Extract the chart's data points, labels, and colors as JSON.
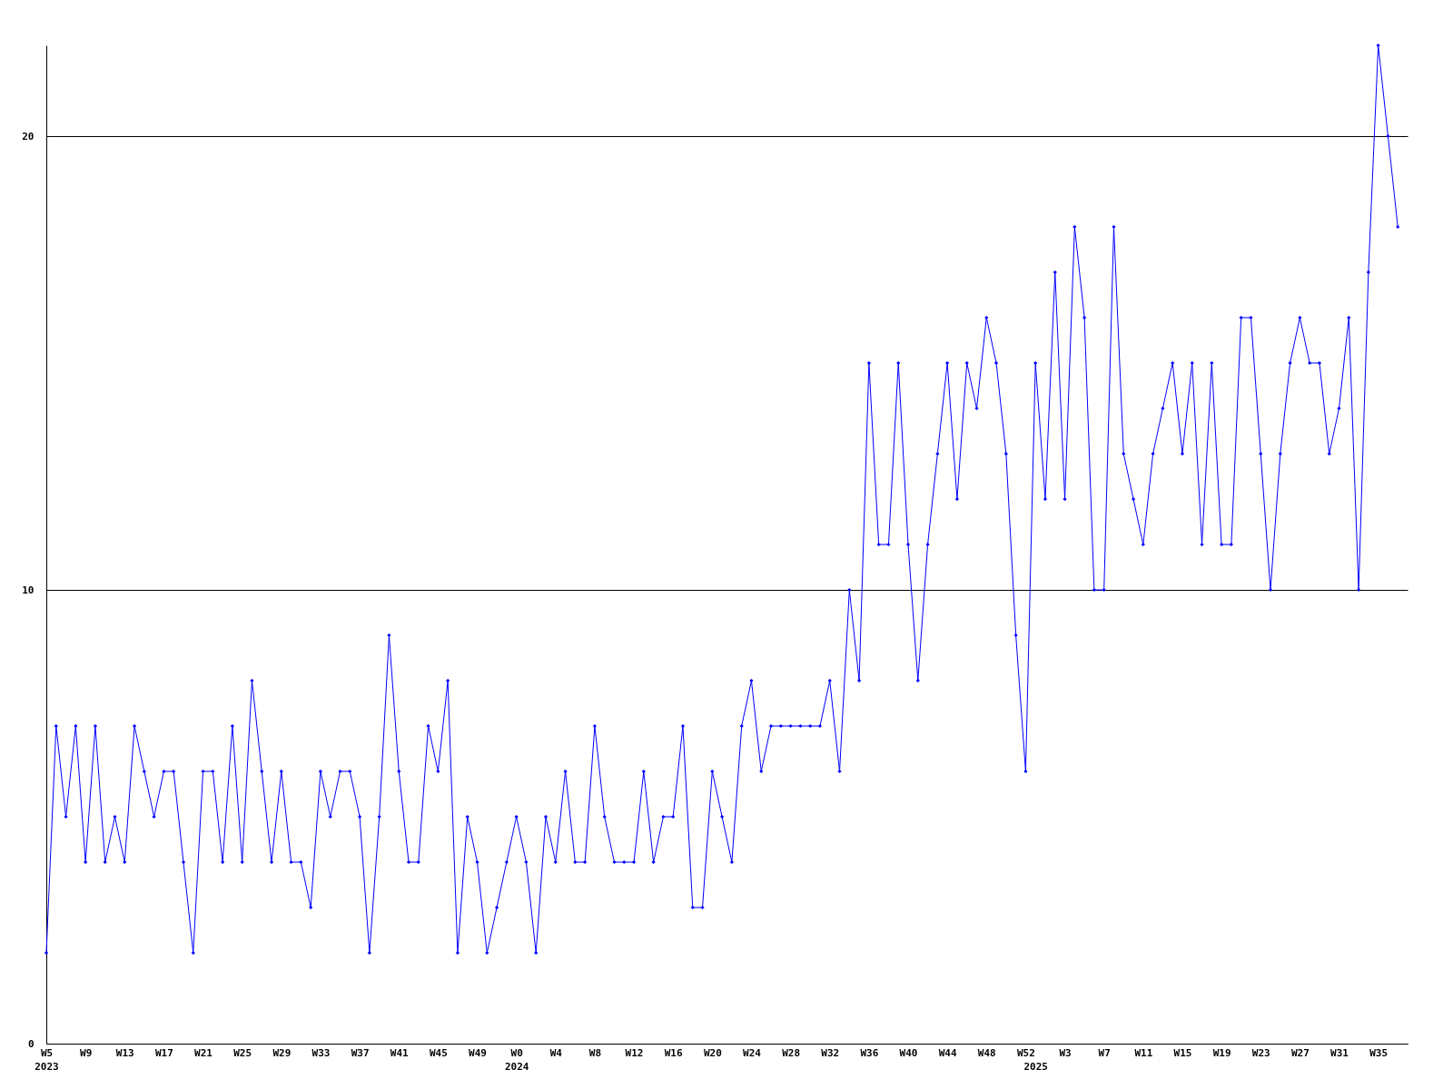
{
  "chart_data": {
    "type": "line",
    "categories": [
      "W5\n2023",
      null,
      null,
      null,
      "W9",
      null,
      null,
      null,
      "W13",
      null,
      null,
      null,
      "W17",
      null,
      null,
      null,
      "W21",
      null,
      null,
      null,
      "W25",
      null,
      null,
      null,
      "W29",
      null,
      null,
      null,
      "W33",
      null,
      null,
      null,
      "W37",
      null,
      null,
      null,
      "W41",
      null,
      null,
      null,
      "W45",
      null,
      null,
      null,
      "W49",
      null,
      null,
      null,
      "W0\n2024",
      null,
      null,
      null,
      "W4",
      null,
      null,
      null,
      "W8",
      null,
      null,
      null,
      "W12",
      null,
      null,
      null,
      "W16",
      null,
      null,
      null,
      "W20",
      null,
      null,
      null,
      "W24",
      null,
      null,
      null,
      "W28",
      null,
      null,
      null,
      "W32",
      null,
      null,
      null,
      "W36",
      null,
      null,
      null,
      "W40",
      null,
      null,
      null,
      "W44",
      null,
      null,
      null,
      "W48",
      null,
      null,
      null,
      "W52",
      "\n2025",
      null,
      null,
      "W3",
      null,
      null,
      null,
      "W7",
      null,
      null,
      null,
      "W11",
      null,
      null,
      null,
      "W15",
      null,
      null,
      null,
      "W19",
      null,
      null,
      null,
      "W23",
      null,
      null,
      null,
      "W27",
      null,
      null,
      null,
      "W31",
      null,
      null,
      null,
      "W35",
      null,
      null,
      null
    ],
    "series": [
      {
        "color": "#0000ff",
        "values": [
          2,
          7,
          5,
          7,
          4,
          7,
          4,
          5,
          4,
          7,
          6,
          5,
          6,
          6,
          4,
          2,
          6,
          6,
          4,
          7,
          4,
          8,
          6,
          4,
          6,
          4,
          4,
          3,
          6,
          5,
          6,
          6,
          5,
          2,
          5,
          9,
          6,
          4,
          4,
          7,
          6,
          8,
          2,
          5,
          4,
          2,
          3,
          4,
          5,
          4,
          2,
          5,
          4,
          6,
          4,
          4,
          7,
          5,
          4,
          4,
          4,
          6,
          4,
          5,
          5,
          7,
          3,
          3,
          6,
          5,
          4,
          7,
          8,
          6,
          7,
          7,
          7,
          7,
          7,
          7,
          8,
          6,
          10,
          8,
          15,
          11,
          11,
          15,
          11,
          8,
          11,
          13,
          15,
          12,
          15,
          14,
          16,
          15,
          13,
          9,
          6,
          15,
          12,
          17,
          12,
          18,
          16,
          10,
          10,
          18,
          13,
          12,
          11,
          13,
          14,
          15,
          13,
          15,
          11,
          15,
          11,
          11,
          16,
          16,
          13,
          10,
          13,
          15,
          16,
          15,
          15,
          13,
          14,
          16,
          10,
          17,
          22,
          20,
          18,
          null
        ]
      }
    ],
    "ylim": [
      0,
      22
    ],
    "yticks": [
      0,
      10,
      20
    ],
    "grid": "y",
    "marker": "diamond",
    "line_style": "solid"
  }
}
